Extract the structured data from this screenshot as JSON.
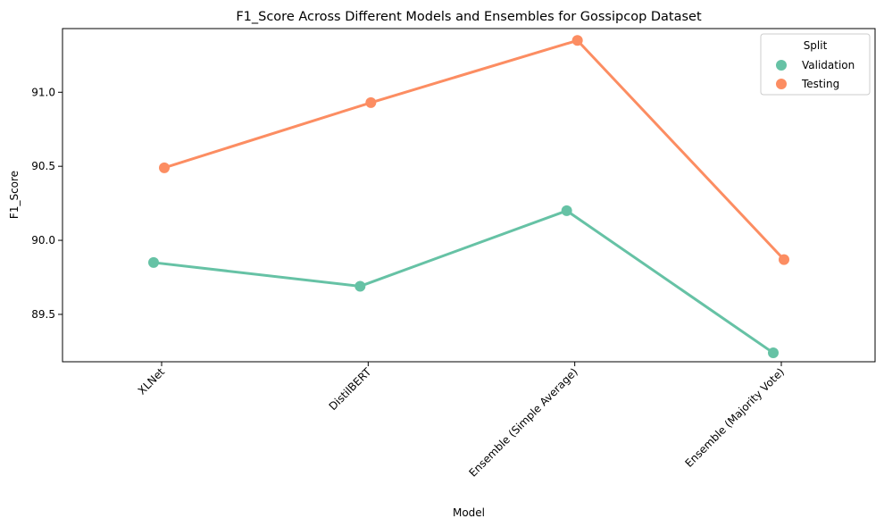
{
  "chart_data": {
    "type": "line",
    "title": "F1_Score Across Different Models and Ensembles for Gossipcop Dataset",
    "xlabel": "Model",
    "ylabel": "F1_Score",
    "categories": [
      "XLNet",
      "DistilBERT",
      "Ensemble (Simple Average)",
      "Ensemble (Majority Vote)"
    ],
    "ylim": [
      89.18,
      91.43
    ],
    "yticks": [
      "89.5",
      "90.0",
      "90.5",
      "91.0"
    ],
    "legend": {
      "title": "Split",
      "position": "top-right"
    },
    "grid": false,
    "series": [
      {
        "name": "Validation",
        "color": "#66c2a5",
        "values": [
          89.85,
          89.69,
          90.2,
          89.24
        ]
      },
      {
        "name": "Testing",
        "color": "#fc8d62",
        "values": [
          90.49,
          90.93,
          91.35,
          89.87
        ]
      }
    ]
  }
}
